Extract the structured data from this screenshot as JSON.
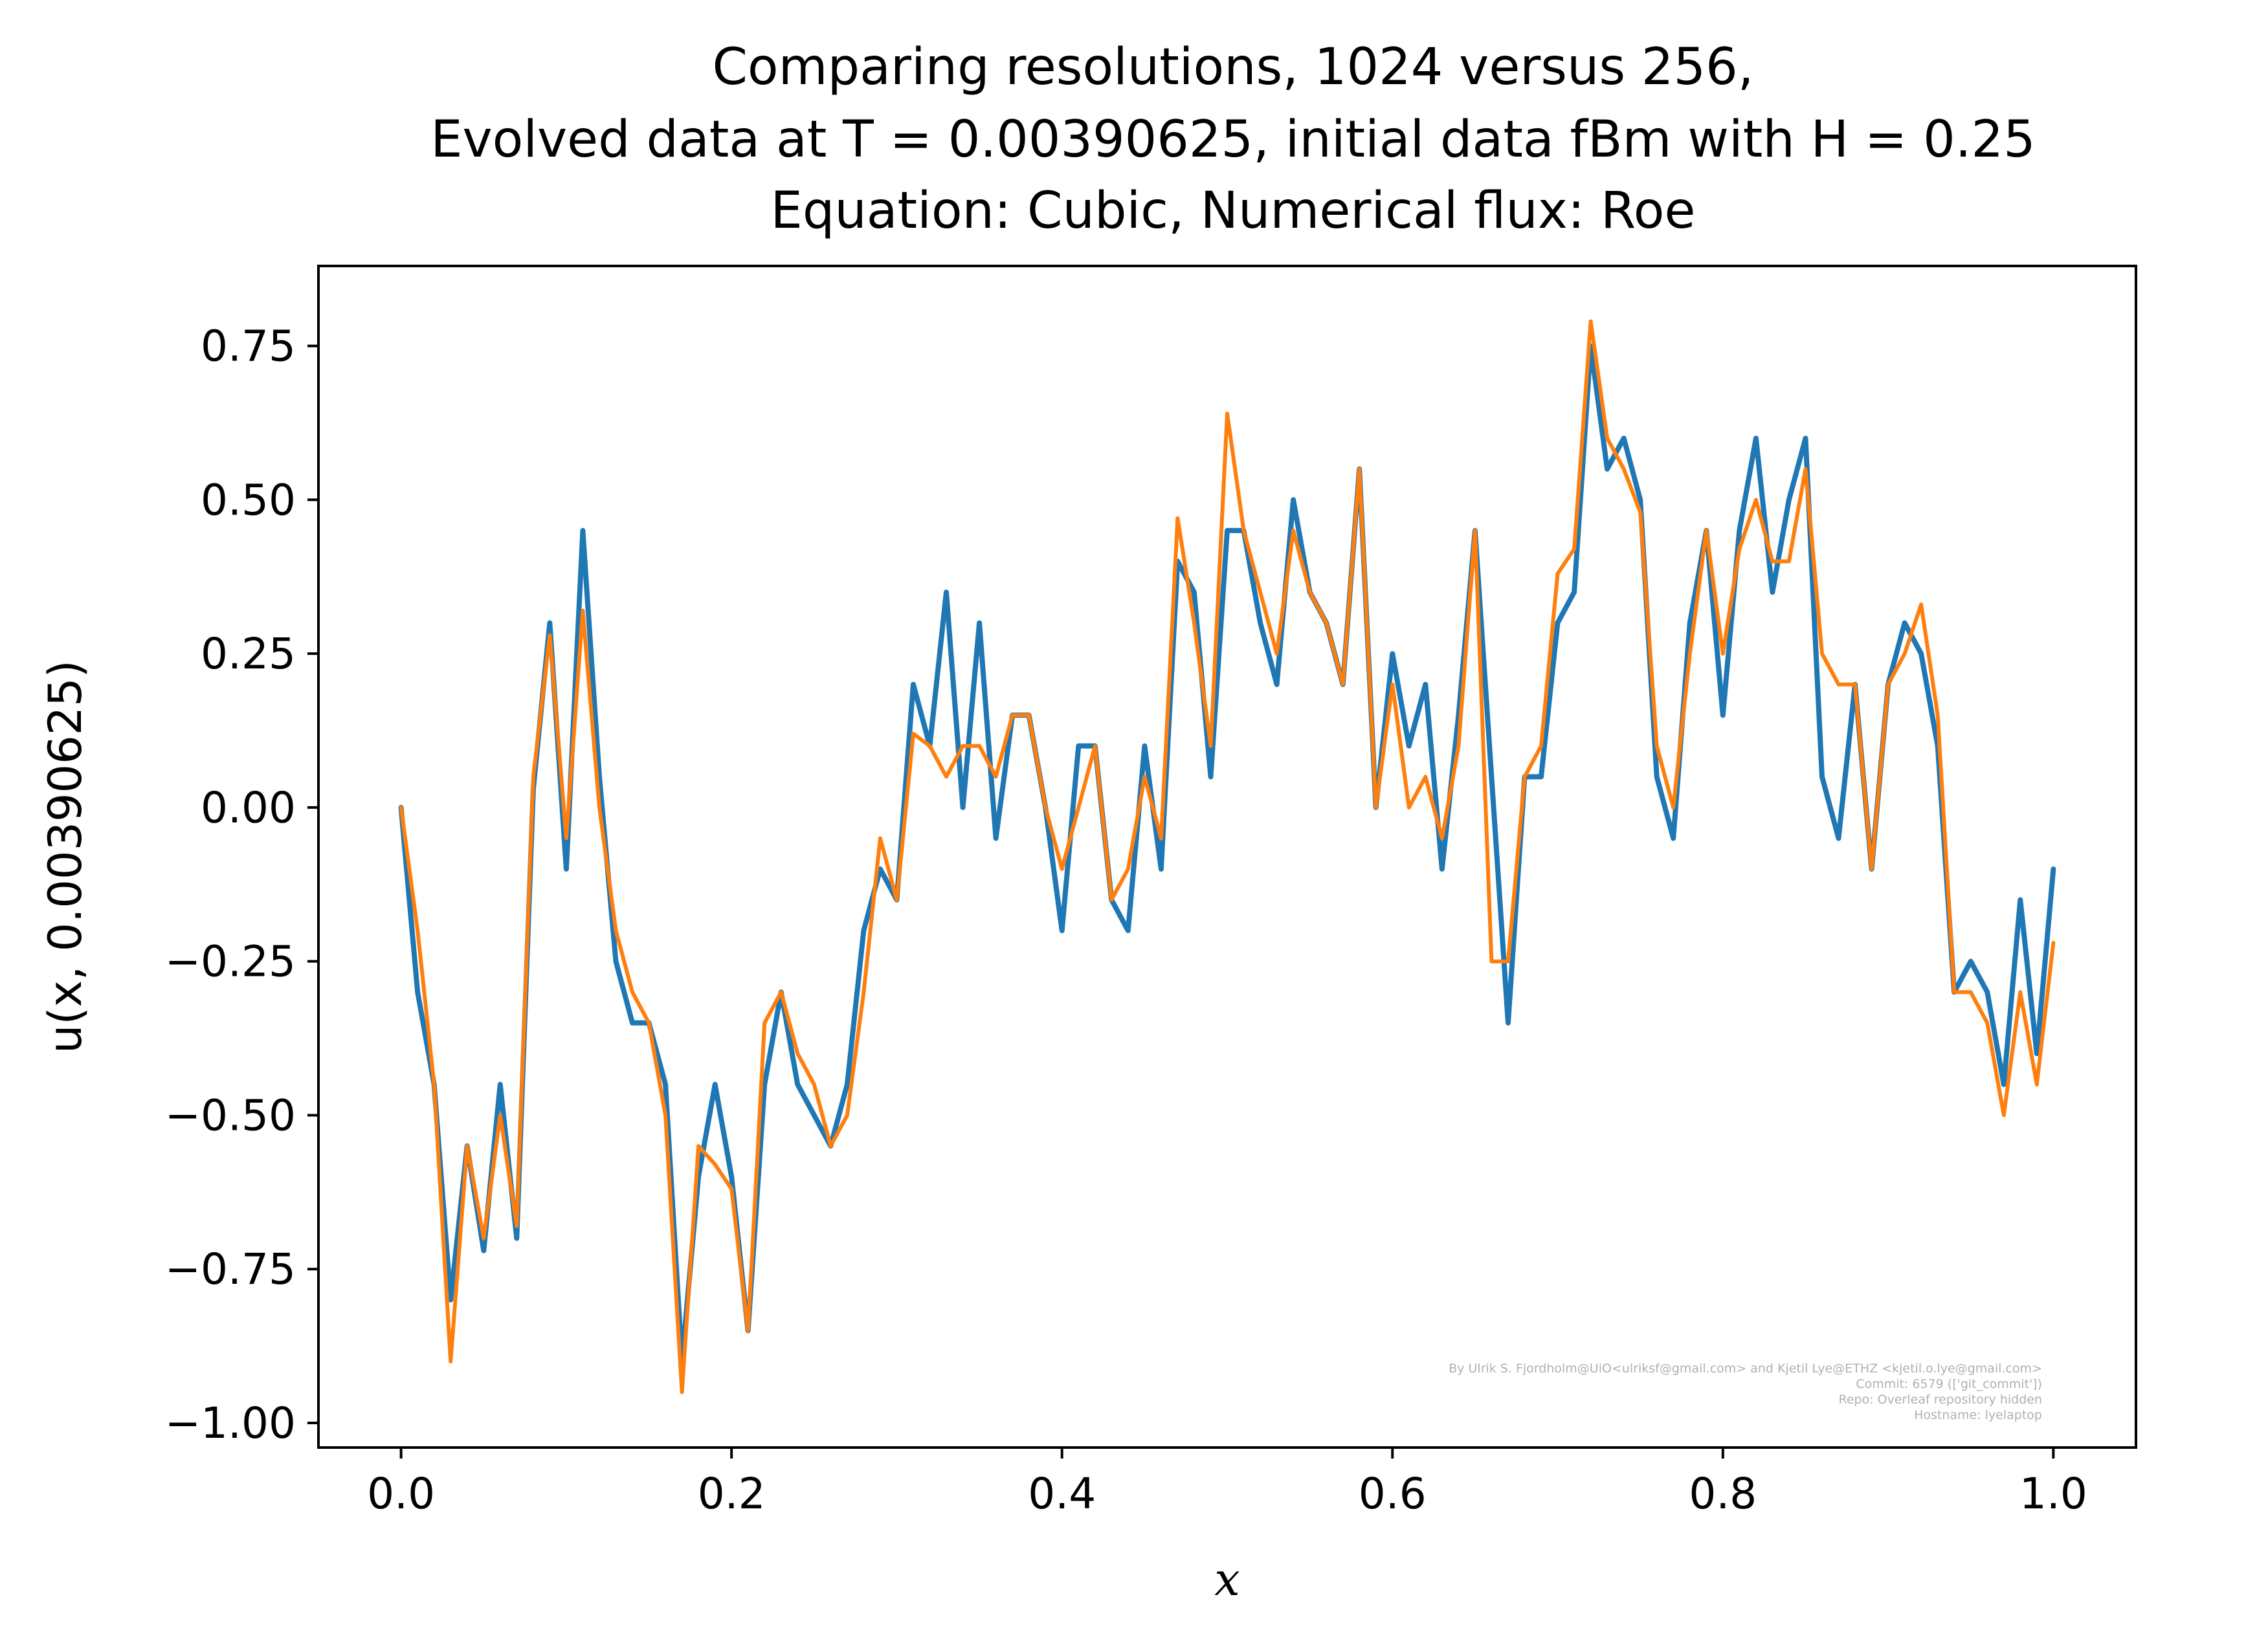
{
  "chart_data": {
    "type": "line",
    "title_lines": [
      "Comparing resolutions, 1024 versus 256,",
      "Evolved data at T = 0.00390625, initial data fBm with H = 0.25",
      "Equation: Cubic, Numerical flux: Roe"
    ],
    "xlabel": "x",
    "ylabel": "u(x, 0.00390625)",
    "xlim": [
      -0.05,
      1.05
    ],
    "ylim": [
      -1.04,
      0.88
    ],
    "x_ticks": [
      0.0,
      0.2,
      0.4,
      0.6,
      0.8,
      1.0
    ],
    "x_tick_labels": [
      "0.0",
      "0.2",
      "0.4",
      "0.6",
      "0.8",
      "1.0"
    ],
    "y_ticks": [
      -1.0,
      -0.75,
      -0.5,
      -0.25,
      0.0,
      0.25,
      0.5,
      0.75
    ],
    "y_tick_labels": [
      "−1.00",
      "−0.75",
      "−0.50",
      "−0.25",
      "0.00",
      "0.25",
      "0.50",
      "0.75"
    ],
    "grid": false,
    "legend": "none",
    "series": [
      {
        "color": "#1f77b4",
        "resolution": 1024,
        "x": [
          0.0,
          0.01,
          0.02,
          0.03,
          0.04,
          0.05,
          0.06,
          0.07,
          0.08,
          0.09,
          0.1,
          0.11,
          0.12,
          0.13,
          0.14,
          0.15,
          0.16,
          0.17,
          0.18,
          0.19,
          0.2,
          0.21,
          0.22,
          0.23,
          0.24,
          0.25,
          0.26,
          0.27,
          0.28,
          0.29,
          0.3,
          0.31,
          0.32,
          0.33,
          0.34,
          0.35,
          0.36,
          0.37,
          0.38,
          0.39,
          0.4,
          0.41,
          0.42,
          0.43,
          0.44,
          0.45,
          0.46,
          0.47,
          0.48,
          0.49,
          0.5,
          0.51,
          0.52,
          0.53,
          0.54,
          0.55,
          0.56,
          0.57,
          0.58,
          0.59,
          0.6,
          0.61,
          0.62,
          0.63,
          0.64,
          0.65,
          0.66,
          0.67,
          0.68,
          0.69,
          0.7,
          0.71,
          0.72,
          0.73,
          0.74,
          0.75,
          0.76,
          0.77,
          0.78,
          0.79,
          0.8,
          0.81,
          0.82,
          0.83,
          0.84,
          0.85,
          0.86,
          0.87,
          0.88,
          0.89,
          0.9,
          0.91,
          0.92,
          0.93,
          0.94,
          0.95,
          0.96,
          0.97,
          0.98,
          0.99,
          1.0
        ],
        "y": [
          0.0,
          -0.3,
          -0.45,
          -0.8,
          -0.55,
          -0.72,
          -0.45,
          -0.7,
          0.03,
          0.3,
          -0.1,
          0.45,
          0.05,
          -0.25,
          -0.35,
          -0.35,
          -0.45,
          -0.9,
          -0.6,
          -0.45,
          -0.6,
          -0.85,
          -0.45,
          -0.3,
          -0.45,
          -0.5,
          -0.55,
          -0.45,
          -0.2,
          -0.1,
          -0.15,
          0.2,
          0.1,
          0.35,
          0.0,
          0.3,
          -0.05,
          0.15,
          0.15,
          0.0,
          -0.2,
          0.1,
          0.1,
          -0.15,
          -0.2,
          0.1,
          -0.1,
          0.4,
          0.35,
          0.05,
          0.45,
          0.45,
          0.3,
          0.2,
          0.5,
          0.35,
          0.3,
          0.2,
          0.55,
          0.0,
          0.25,
          0.1,
          0.2,
          -0.1,
          0.15,
          0.45,
          0.05,
          -0.35,
          0.05,
          0.05,
          0.3,
          0.35,
          0.75,
          0.55,
          0.6,
          0.5,
          0.05,
          -0.05,
          0.3,
          0.45,
          0.15,
          0.45,
          0.6,
          0.35,
          0.5,
          0.6,
          0.05,
          -0.05,
          0.2,
          -0.1,
          0.2,
          0.3,
          0.25,
          0.1,
          -0.3,
          -0.25,
          -0.3,
          -0.45,
          -0.15,
          -0.4,
          -0.1
        ]
      },
      {
        "color": "#ff7f0e",
        "resolution": 256,
        "x": [
          0.0,
          0.01,
          0.02,
          0.03,
          0.04,
          0.05,
          0.06,
          0.07,
          0.08,
          0.09,
          0.1,
          0.11,
          0.12,
          0.13,
          0.14,
          0.15,
          0.16,
          0.17,
          0.18,
          0.19,
          0.2,
          0.21,
          0.22,
          0.23,
          0.24,
          0.25,
          0.26,
          0.27,
          0.28,
          0.29,
          0.3,
          0.31,
          0.32,
          0.33,
          0.34,
          0.35,
          0.36,
          0.37,
          0.38,
          0.39,
          0.4,
          0.41,
          0.42,
          0.43,
          0.44,
          0.45,
          0.46,
          0.47,
          0.48,
          0.49,
          0.5,
          0.51,
          0.52,
          0.53,
          0.54,
          0.55,
          0.56,
          0.57,
          0.58,
          0.59,
          0.6,
          0.61,
          0.62,
          0.63,
          0.64,
          0.65,
          0.66,
          0.67,
          0.68,
          0.69,
          0.7,
          0.71,
          0.72,
          0.73,
          0.74,
          0.75,
          0.76,
          0.77,
          0.78,
          0.79,
          0.8,
          0.81,
          0.82,
          0.83,
          0.84,
          0.85,
          0.86,
          0.87,
          0.88,
          0.89,
          0.9,
          0.91,
          0.92,
          0.93,
          0.94,
          0.95,
          0.96,
          0.97,
          0.98,
          0.99,
          1.0
        ],
        "y": [
          0.0,
          -0.2,
          -0.45,
          -0.9,
          -0.55,
          -0.7,
          -0.5,
          -0.68,
          0.05,
          0.28,
          -0.05,
          0.32,
          0.0,
          -0.2,
          -0.3,
          -0.35,
          -0.5,
          -0.95,
          -0.55,
          -0.58,
          -0.62,
          -0.85,
          -0.35,
          -0.3,
          -0.4,
          -0.45,
          -0.55,
          -0.5,
          -0.3,
          -0.05,
          -0.15,
          0.12,
          0.1,
          0.05,
          0.1,
          0.1,
          0.05,
          0.15,
          0.15,
          0.0,
          -0.1,
          0.0,
          0.1,
          -0.15,
          -0.1,
          0.05,
          -0.05,
          0.47,
          0.3,
          0.1,
          0.64,
          0.45,
          0.35,
          0.25,
          0.45,
          0.35,
          0.3,
          0.2,
          0.55,
          0.0,
          0.2,
          0.0,
          0.05,
          -0.05,
          0.1,
          0.45,
          -0.25,
          -0.25,
          0.05,
          0.1,
          0.38,
          0.42,
          0.79,
          0.6,
          0.55,
          0.48,
          0.1,
          0.0,
          0.25,
          0.45,
          0.25,
          0.42,
          0.5,
          0.4,
          0.4,
          0.55,
          0.25,
          0.2,
          0.2,
          -0.1,
          0.2,
          0.25,
          0.33,
          0.15,
          -0.3,
          -0.3,
          -0.35,
          -0.5,
          -0.3,
          -0.45,
          -0.22
        ]
      }
    ]
  },
  "credit_lines": [
    "By Ulrik S. Fjordholm@UiO<ulriksf@gmail.com> and Kjetil Lye@ETHZ <kjetil.o.lye@gmail.com>",
    "Commit: 6579 (['git_commit'])",
    "Repo: Overleaf repository hidden",
    "Hostname: lyelaptop"
  ]
}
